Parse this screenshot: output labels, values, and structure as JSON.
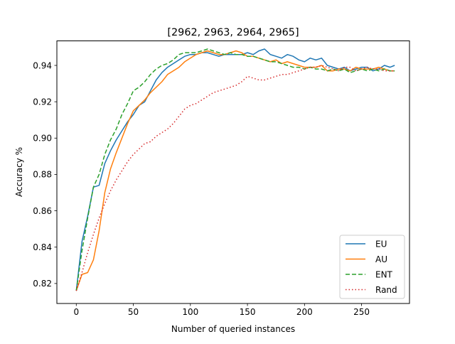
{
  "chart_data": {
    "type": "line",
    "title": "[2962, 2963, 2964, 2965]",
    "xlabel": "Number of queried instances",
    "ylabel": "Accuracy %",
    "xlim": [
      -17,
      292
    ],
    "ylim": [
      0.809,
      0.9535
    ],
    "xticks": [
      0,
      50,
      100,
      150,
      200,
      250
    ],
    "yticks": [
      0.82,
      0.84,
      0.86,
      0.88,
      0.9,
      0.92,
      0.94
    ],
    "ytick_labels": [
      "0.82",
      "0.84",
      "0.86",
      "0.88",
      "0.90",
      "0.92",
      "0.94"
    ],
    "grid": false,
    "legend_position": "lower-right",
    "series": [
      {
        "name": "EU",
        "color": "#1f77b4",
        "dash": "solid",
        "x": [
          0,
          5,
          10,
          15,
          20,
          25,
          30,
          35,
          40,
          45,
          50,
          55,
          60,
          65,
          70,
          75,
          80,
          85,
          90,
          95,
          100,
          105,
          110,
          115,
          120,
          125,
          130,
          135,
          140,
          145,
          150,
          155,
          160,
          165,
          170,
          175,
          180,
          185,
          190,
          195,
          200,
          205,
          210,
          215,
          220,
          225,
          230,
          235,
          240,
          245,
          250,
          255,
          260,
          265,
          270,
          275,
          279
        ],
        "y": [
          0.816,
          0.843,
          0.857,
          0.873,
          0.874,
          0.886,
          0.893,
          0.899,
          0.904,
          0.909,
          0.913,
          0.918,
          0.92,
          0.926,
          0.932,
          0.936,
          0.939,
          0.941,
          0.943,
          0.945,
          0.946,
          0.946,
          0.947,
          0.947,
          0.946,
          0.945,
          0.946,
          0.946,
          0.946,
          0.946,
          0.947,
          0.946,
          0.948,
          0.949,
          0.946,
          0.945,
          0.944,
          0.946,
          0.945,
          0.943,
          0.942,
          0.944,
          0.943,
          0.944,
          0.94,
          0.939,
          0.938,
          0.939,
          0.937,
          0.938,
          0.939,
          0.939,
          0.937,
          0.938,
          0.94,
          0.939,
          0.94
        ]
      },
      {
        "name": "AU",
        "color": "#ff7f0e",
        "dash": "solid",
        "x": [
          0,
          5,
          10,
          15,
          20,
          25,
          30,
          35,
          40,
          45,
          50,
          55,
          60,
          65,
          70,
          75,
          80,
          85,
          90,
          95,
          100,
          105,
          110,
          115,
          120,
          125,
          130,
          135,
          140,
          145,
          150,
          155,
          160,
          165,
          170,
          175,
          180,
          185,
          190,
          195,
          200,
          205,
          210,
          215,
          220,
          225,
          230,
          235,
          240,
          245,
          250,
          255,
          260,
          265,
          270,
          275,
          279
        ],
        "y": [
          0.816,
          0.825,
          0.826,
          0.833,
          0.849,
          0.87,
          0.883,
          0.892,
          0.9,
          0.908,
          0.915,
          0.918,
          0.921,
          0.925,
          0.928,
          0.931,
          0.935,
          0.937,
          0.939,
          0.942,
          0.944,
          0.946,
          0.947,
          0.948,
          0.947,
          0.946,
          0.946,
          0.947,
          0.948,
          0.947,
          0.945,
          0.945,
          0.944,
          0.943,
          0.942,
          0.943,
          0.941,
          0.942,
          0.941,
          0.94,
          0.939,
          0.939,
          0.939,
          0.94,
          0.937,
          0.937,
          0.938,
          0.938,
          0.937,
          0.939,
          0.938,
          0.938,
          0.938,
          0.939,
          0.938,
          0.937,
          0.937
        ]
      },
      {
        "name": "ENT",
        "color": "#2ca02c",
        "dash": "6,3",
        "x": [
          0,
          5,
          10,
          15,
          20,
          25,
          30,
          35,
          40,
          45,
          50,
          55,
          60,
          65,
          70,
          75,
          80,
          85,
          90,
          95,
          100,
          105,
          110,
          115,
          120,
          125,
          130,
          135,
          140,
          145,
          150,
          155,
          160,
          165,
          170,
          175,
          180,
          185,
          190,
          195,
          200,
          205,
          210,
          215,
          220,
          225,
          230,
          235,
          240,
          245,
          250,
          255,
          260,
          265,
          270,
          275,
          279
        ],
        "y": [
          0.816,
          0.838,
          0.856,
          0.873,
          0.88,
          0.891,
          0.899,
          0.905,
          0.913,
          0.919,
          0.926,
          0.928,
          0.931,
          0.935,
          0.938,
          0.94,
          0.941,
          0.943,
          0.946,
          0.947,
          0.947,
          0.947,
          0.948,
          0.949,
          0.948,
          0.947,
          0.946,
          0.947,
          0.946,
          0.946,
          0.945,
          0.945,
          0.944,
          0.943,
          0.942,
          0.942,
          0.941,
          0.94,
          0.939,
          0.939,
          0.938,
          0.939,
          0.938,
          0.938,
          0.937,
          0.938,
          0.937,
          0.938,
          0.936,
          0.937,
          0.938,
          0.937,
          0.938,
          0.937,
          0.938,
          0.937,
          0.937
        ]
      },
      {
        "name": "Rand",
        "color": "#d62728",
        "dash": "1.5,3",
        "x": [
          0,
          5,
          10,
          15,
          20,
          25,
          30,
          35,
          40,
          45,
          50,
          55,
          60,
          65,
          70,
          75,
          80,
          85,
          90,
          95,
          100,
          105,
          110,
          115,
          120,
          125,
          130,
          135,
          140,
          145,
          150,
          155,
          160,
          165,
          170,
          175,
          180,
          185,
          190,
          195,
          200,
          205,
          210,
          215,
          220,
          225,
          230,
          235,
          240,
          245,
          250,
          255,
          260,
          265,
          270,
          275,
          279
        ],
        "y": [
          0.816,
          0.826,
          0.837,
          0.847,
          0.856,
          0.864,
          0.871,
          0.877,
          0.882,
          0.887,
          0.891,
          0.894,
          0.897,
          0.898,
          0.901,
          0.903,
          0.905,
          0.908,
          0.912,
          0.916,
          0.918,
          0.919,
          0.921,
          0.923,
          0.925,
          0.926,
          0.927,
          0.928,
          0.929,
          0.931,
          0.934,
          0.933,
          0.932,
          0.932,
          0.933,
          0.934,
          0.935,
          0.935,
          0.936,
          0.937,
          0.938,
          0.939,
          0.939,
          0.94,
          0.939,
          0.938,
          0.937,
          0.939,
          0.939,
          0.937,
          0.938,
          0.939,
          0.938,
          0.938,
          0.937,
          0.937,
          0.937
        ]
      }
    ]
  }
}
